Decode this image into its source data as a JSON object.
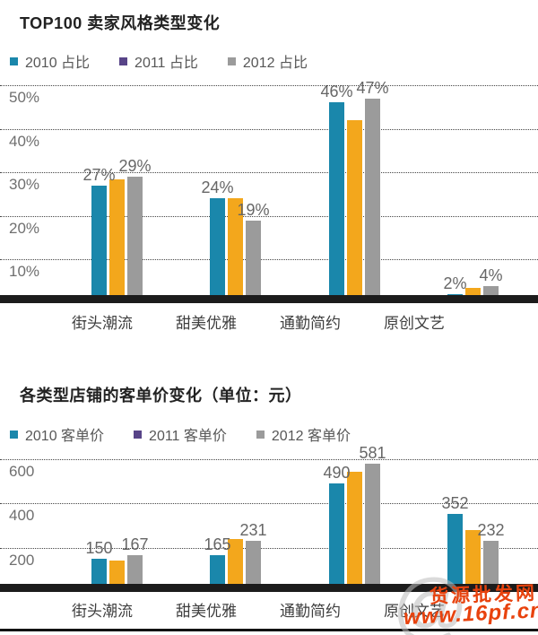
{
  "charts": [
    {
      "title": "TOP100 卖家风格类型变化",
      "legend": [
        {
          "label": "2010 占比",
          "color": "#1a87ab"
        },
        {
          "label": "2011 占比",
          "color": "#584488"
        },
        {
          "label": "2012 占比",
          "color": "#9b9b9b"
        }
      ]
    },
    {
      "title": "各类型店铺的客单价变化（单位：元）",
      "legend": [
        {
          "label": "2010 客单价",
          "color": "#1a87ab"
        },
        {
          "label": "2011 客单价",
          "color": "#584488"
        },
        {
          "label": "2012 客单价",
          "color": "#9b9b9b"
        }
      ]
    }
  ],
  "chart_data": [
    {
      "type": "bar",
      "title": "TOP100 卖家风格类型变化",
      "categories": [
        "街头潮流",
        "甜美优雅",
        "通勤简约",
        "原创文艺"
      ],
      "series": [
        {
          "name": "2010 占比",
          "legend_color": "#1a87ab",
          "bar_color": "#1a87ab",
          "values": [
            27,
            24,
            46,
            2
          ],
          "labels": [
            "27%",
            "24%",
            "46%",
            "2%"
          ]
        },
        {
          "name": "2011 占比",
          "legend_color": "#584488",
          "bar_color": "#f3a71c",
          "values": [
            28.5,
            24,
            42,
            3.5
          ],
          "labels": [
            null,
            null,
            null,
            null
          ]
        },
        {
          "name": "2012 占比",
          "legend_color": "#9b9b9b",
          "bar_color": "#9b9b9b",
          "values": [
            29,
            19,
            47,
            4
          ],
          "labels": [
            "29%",
            "19%",
            "47%",
            "4%"
          ]
        }
      ],
      "y_ticks": [
        "50%",
        "40%",
        "30%",
        "20%",
        "10%"
      ],
      "y_tick_values": [
        50,
        40,
        30,
        20,
        10
      ],
      "ylim": [
        0,
        50
      ],
      "grid": "dotted-horizontal",
      "legend_position": "top",
      "unit": "%"
    },
    {
      "type": "bar",
      "title": "各类型店铺的客单价变化（单位：元）",
      "categories": [
        "街头潮流",
        "甜美优雅",
        "通勤简约",
        "原创文艺"
      ],
      "series": [
        {
          "name": "2010 客单价",
          "legend_color": "#1a87ab",
          "bar_color": "#1a87ab",
          "values": [
            150,
            165,
            490,
            352
          ],
          "labels": [
            "150",
            "165",
            "490",
            "352"
          ]
        },
        {
          "name": "2011 客单价",
          "legend_color": "#584488",
          "bar_color": "#f3a71c",
          "values": [
            140,
            240,
            545,
            280
          ],
          "labels": [
            null,
            null,
            null,
            null
          ]
        },
        {
          "name": "2012 客单价",
          "legend_color": "#9b9b9b",
          "bar_color": "#9b9b9b",
          "values": [
            167,
            231,
            581,
            232
          ],
          "labels": [
            "167",
            "231",
            "581",
            "232"
          ]
        }
      ],
      "y_ticks": [
        "600",
        "400",
        "200"
      ],
      "y_tick_values": [
        600,
        400,
        200
      ],
      "ylim": [
        0,
        665
      ],
      "grid": "dotted-horizontal",
      "legend_position": "top",
      "unit": "元"
    }
  ],
  "watermark": {
    "at_symbol": "@",
    "line1": "货源批发网",
    "line2": "www.16pf.cn",
    "color": "#e8420d"
  }
}
